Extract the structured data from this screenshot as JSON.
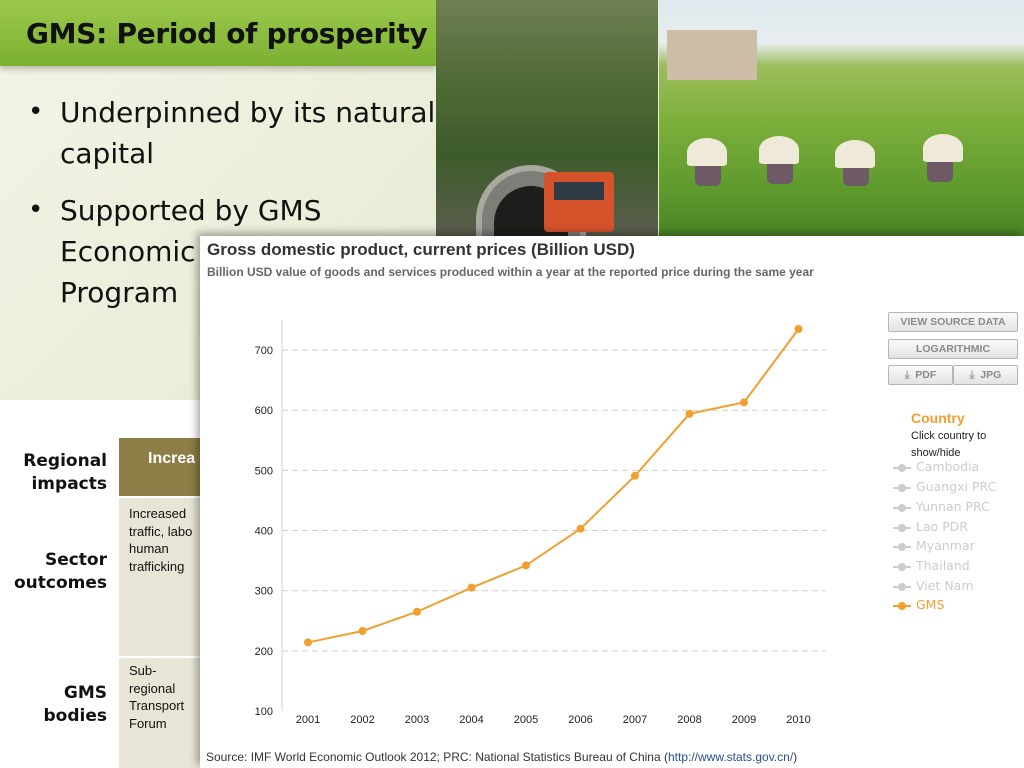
{
  "slide": {
    "title": "GMS: Period of prosperity",
    "bullets": [
      {
        "line1": "Underpinned by its natural",
        "line2": "capital"
      },
      {
        "line1": "Supported by GMS",
        "line2": "Economic",
        "line3": "Program"
      }
    ]
  },
  "table": {
    "rows": [
      {
        "label_line1": "Regional",
        "label_line2": "impacts"
      },
      {
        "label_line1": "Sector",
        "label_line2": "outcomes"
      },
      {
        "label_line1": "GMS",
        "label_line2": "bodies"
      }
    ],
    "header_text": "Increa",
    "cells": [
      {
        "lines": [
          "Increased",
          "traffic, labo",
          "human",
          "trafficking"
        ]
      },
      {
        "lines": [
          "Sub-",
          "regional",
          "Transport",
          "Forum"
        ]
      }
    ]
  },
  "chart_controls": {
    "view_source": "VIEW SOURCE DATA",
    "logarithmic": "LOGARITHMIC",
    "pdf": "PDF",
    "jpg": "JPG"
  },
  "legend": {
    "title": "Country",
    "help": "Click country to show/hide",
    "items": [
      {
        "label": "Cambodia",
        "active": false,
        "color": "#cccccc"
      },
      {
        "label": "Guangxi PRC",
        "active": false,
        "color": "#cccccc"
      },
      {
        "label": "Yunnan PRC",
        "active": false,
        "color": "#cccccc"
      },
      {
        "label": "Lao PDR",
        "active": false,
        "color": "#cccccc"
      },
      {
        "label": "Myanmar",
        "active": false,
        "color": "#cccccc"
      },
      {
        "label": "Thailand",
        "active": false,
        "color": "#cccccc"
      },
      {
        "label": "Viet Nam",
        "active": false,
        "color": "#cccccc"
      },
      {
        "label": "GMS",
        "active": true,
        "color": "#f0a030"
      }
    ]
  },
  "source": {
    "text": "Source: IMF World Economic Outlook 2012; PRC: National Statistics Bureau of China (",
    "link": "http://www.stats.gov.cn/",
    "close": ")"
  },
  "chart_data": {
    "type": "line",
    "title": "Gross domestic product, current prices (Billion USD)",
    "subtitle": "Billion USD value of goods and services produced within a year at the reported price during the same year",
    "x": [
      "2001",
      "2002",
      "2003",
      "2004",
      "2005",
      "2006",
      "2007",
      "2008",
      "2009",
      "2010"
    ],
    "series": [
      {
        "name": "GMS",
        "values": [
          214,
          233,
          265,
          305,
          342,
          403,
          491,
          594,
          613,
          735
        ],
        "color": "#f0a030"
      }
    ],
    "yticks": [
      100,
      200,
      300,
      400,
      500,
      600,
      700
    ],
    "ylim": [
      100,
      740
    ],
    "grid": "horizontal dashed",
    "legend_position": "right"
  }
}
